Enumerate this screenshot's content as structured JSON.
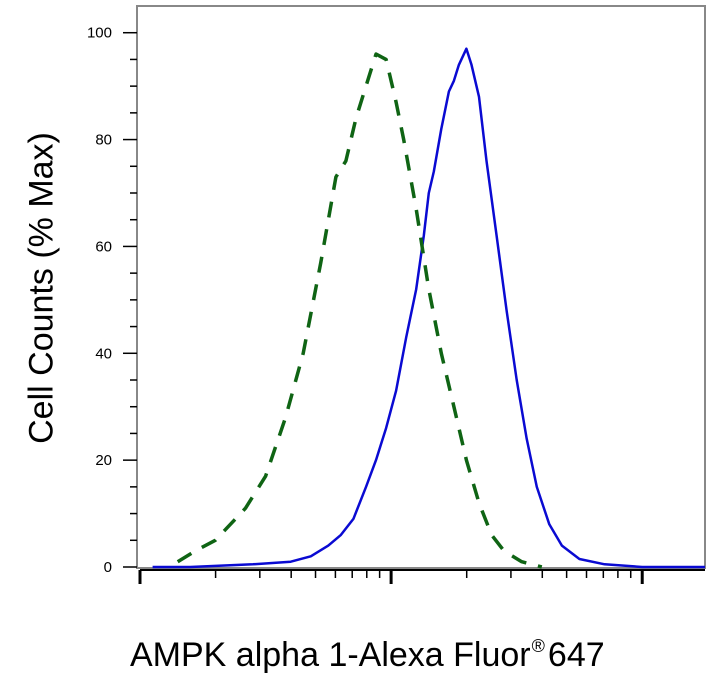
{
  "chart_data": {
    "type": "line",
    "xlabel": "AMPK alpha 1-Alexa Fluor",
    "xlabel_mark": "®",
    "xlabel_tail": "647",
    "ylabel": "Cell Counts (% Max)",
    "ylim": [
      0,
      105
    ],
    "xscale": "log",
    "xlim_decades": [
      0,
      2.25
    ],
    "y_ticks": [
      "0",
      "20",
      "40",
      "60",
      "80",
      "100"
    ],
    "y_tick_values": [
      0,
      20,
      40,
      60,
      80,
      100
    ],
    "grid": false,
    "legend": "none",
    "series": [
      {
        "color": "#0a0ad2",
        "dash": "solid",
        "points": [
          [
            0.05,
            0
          ],
          [
            0.2,
            0
          ],
          [
            0.45,
            0.5
          ],
          [
            0.6,
            1
          ],
          [
            0.68,
            2
          ],
          [
            0.75,
            4
          ],
          [
            0.8,
            6
          ],
          [
            0.85,
            9
          ],
          [
            0.9,
            15
          ],
          [
            0.94,
            20
          ],
          [
            0.98,
            26
          ],
          [
            1.02,
            33
          ],
          [
            1.06,
            43
          ],
          [
            1.1,
            52
          ],
          [
            1.13,
            62
          ],
          [
            1.15,
            70
          ],
          [
            1.17,
            74
          ],
          [
            1.2,
            82
          ],
          [
            1.23,
            89
          ],
          [
            1.25,
            91
          ],
          [
            1.27,
            94
          ],
          [
            1.3,
            97
          ],
          [
            1.32,
            94
          ],
          [
            1.35,
            88
          ],
          [
            1.38,
            76
          ],
          [
            1.42,
            62
          ],
          [
            1.46,
            48
          ],
          [
            1.5,
            35
          ],
          [
            1.54,
            24
          ],
          [
            1.58,
            15
          ],
          [
            1.63,
            8
          ],
          [
            1.68,
            4
          ],
          [
            1.75,
            1.5
          ],
          [
            1.85,
            0.5
          ],
          [
            2.0,
            0
          ],
          [
            2.25,
            0
          ]
        ]
      },
      {
        "color": "#0f6414",
        "dash": "dashed",
        "points": [
          [
            0.15,
            1
          ],
          [
            0.22,
            3
          ],
          [
            0.3,
            5
          ],
          [
            0.36,
            8
          ],
          [
            0.42,
            11
          ],
          [
            0.5,
            17
          ],
          [
            0.58,
            28
          ],
          [
            0.65,
            40
          ],
          [
            0.72,
            57
          ],
          [
            0.78,
            73
          ],
          [
            0.82,
            76
          ],
          [
            0.86,
            84
          ],
          [
            0.9,
            90
          ],
          [
            0.94,
            96
          ],
          [
            0.98,
            95
          ],
          [
            1.02,
            87
          ],
          [
            1.05,
            80
          ],
          [
            1.1,
            67
          ],
          [
            1.15,
            52
          ],
          [
            1.2,
            40
          ],
          [
            1.25,
            30
          ],
          [
            1.3,
            20
          ],
          [
            1.35,
            12
          ],
          [
            1.4,
            6
          ],
          [
            1.45,
            3
          ],
          [
            1.52,
            1
          ],
          [
            1.6,
            0
          ]
        ]
      }
    ]
  }
}
